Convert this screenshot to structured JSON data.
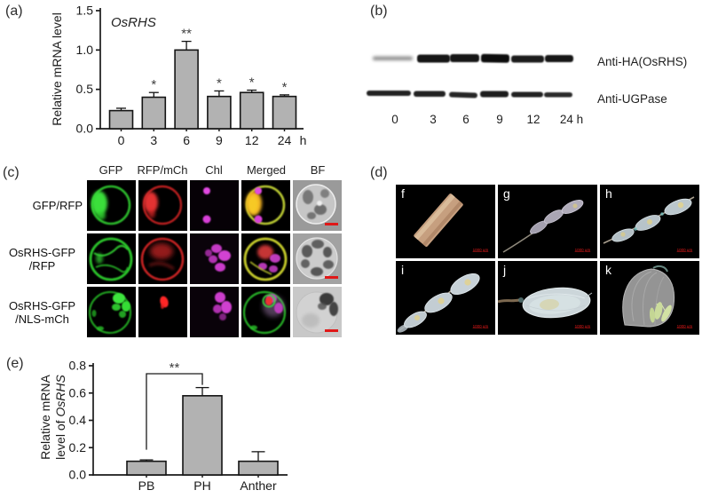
{
  "figure": {
    "panel_labels": {
      "a": "(a)",
      "b": "(b)",
      "c": "(c)",
      "d": "(d)",
      "e": "(e)"
    }
  },
  "panel_b": {
    "antibody_labels": [
      "Anti-HA(OsRHS)",
      "Anti-UGPase"
    ],
    "lane_labels": [
      "0",
      "3",
      "6",
      "9",
      "12",
      "24 h"
    ]
  },
  "panel_c": {
    "col_headers": [
      "GFP",
      "RFP/mCh",
      "Chl",
      "Merged",
      "BF"
    ],
    "row_labels": [
      {
        "line1": "GFP/RFP",
        "line2": ""
      },
      {
        "line1": "OsRHS-GFP",
        "line2": "/RFP"
      },
      {
        "line1": "OsRHS-GFP",
        "line2": "/NLS-mCh"
      }
    ]
  },
  "panel_d": {
    "image_labels": [
      "f",
      "g",
      "h",
      "i",
      "j",
      "k"
    ],
    "scale_text": "1000 μm"
  },
  "chart_data": [
    {
      "id": "a",
      "type": "bar",
      "title": "OsRHS",
      "ylabel": "Relative mRNA level",
      "categories": [
        "0",
        "3",
        "6",
        "9",
        "12",
        "24"
      ],
      "x_axis_suffix": "h",
      "values": [
        0.23,
        0.4,
        1.0,
        0.41,
        0.46,
        0.41
      ],
      "errors": [
        0.03,
        0.06,
        0.11,
        0.07,
        0.03,
        0.02
      ],
      "significance": [
        "",
        "*",
        "**",
        "*",
        "*",
        "*"
      ],
      "ylim": [
        0,
        1.5
      ],
      "yticks": [
        0,
        0.5,
        1.0,
        1.5
      ],
      "grid": false,
      "legend": false
    },
    {
      "id": "e",
      "type": "bar",
      "ylabel_lines": [
        "Relative mRNA",
        "level of OsRHS"
      ],
      "ylabel_italic_word": "OsRHS",
      "categories": [
        "PB",
        "PH",
        "Anther"
      ],
      "values": [
        0.1,
        0.58,
        0.1
      ],
      "errors": [
        0.01,
        0.06,
        0.07
      ],
      "ylim": [
        0,
        0.8
      ],
      "yticks": [
        0,
        0.2,
        0.4,
        0.6,
        0.8
      ],
      "comparison": {
        "from": 0,
        "to": 1,
        "label": "**"
      },
      "grid": false,
      "legend": false
    }
  ],
  "colors": {
    "bar_fill": "#b2b2b2",
    "bar_stroke": "#141414",
    "axis": "#1a1a1a",
    "significance": "#3f3f3f",
    "scalebar_red": "#e01818",
    "gfp_green": "#2ec22e",
    "rfp_red": "#cc2424",
    "chlorophyll_magenta": "#d040d0",
    "merged_yellow": "#c4ca2a"
  }
}
